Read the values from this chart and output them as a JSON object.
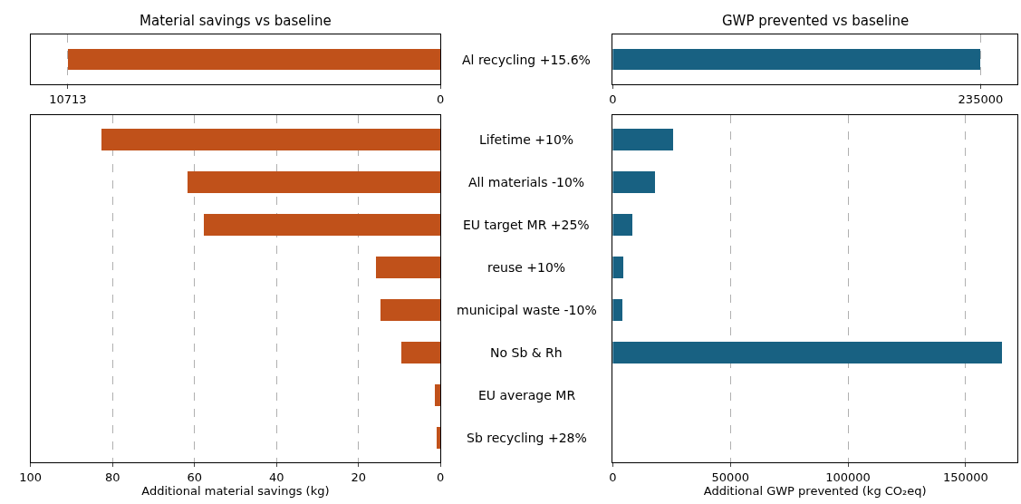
{
  "chart_data": [
    {
      "type": "bar",
      "orientation": "horizontal",
      "title": "Material savings vs baseline",
      "categories": [
        "Al recycling +15.6%"
      ],
      "values": [
        10713
      ],
      "color": "#c0511a",
      "xlim": [
        11784,
        0
      ],
      "xticks": [
        10713,
        0
      ],
      "grid": "x"
    },
    {
      "type": "bar",
      "orientation": "horizontal",
      "title": "GWP prevented vs baseline",
      "categories": [
        null
      ],
      "values": [
        235000
      ],
      "color": "#186182",
      "xlim": [
        0,
        258500
      ],
      "xticks": [
        0,
        235000
      ],
      "grid": "x"
    },
    {
      "type": "bar",
      "orientation": "horizontal",
      "xlabel": "Additional material savings (kg)",
      "categories": [
        "Lifetime +10%",
        "All materials -10%",
        "EU target MR +25%",
        "reuse +10%",
        "municipal waste -10%",
        "No Sb & Rh",
        "EU average MR",
        "Sb recycling +28%"
      ],
      "values": [
        82.8,
        61.7,
        57.8,
        15.7,
        14.6,
        9.6,
        1.5,
        0.9
      ],
      "color": "#c0511a",
      "xlim": [
        100,
        0
      ],
      "xticks": [
        100,
        80,
        60,
        40,
        20,
        0
      ],
      "grid": "x"
    },
    {
      "type": "bar",
      "orientation": "horizontal",
      "xlabel": "Additional GWP prevented (kg CO₂eq)",
      "categories": [
        null,
        null,
        null,
        null,
        null,
        null,
        null,
        null
      ],
      "values": [
        25700,
        18100,
        8600,
        4800,
        4100,
        165800,
        0,
        0
      ],
      "color": "#186182",
      "xlim": [
        0,
        172000
      ],
      "xticks": [
        0,
        50000,
        100000,
        150000
      ],
      "grid": "x"
    }
  ]
}
